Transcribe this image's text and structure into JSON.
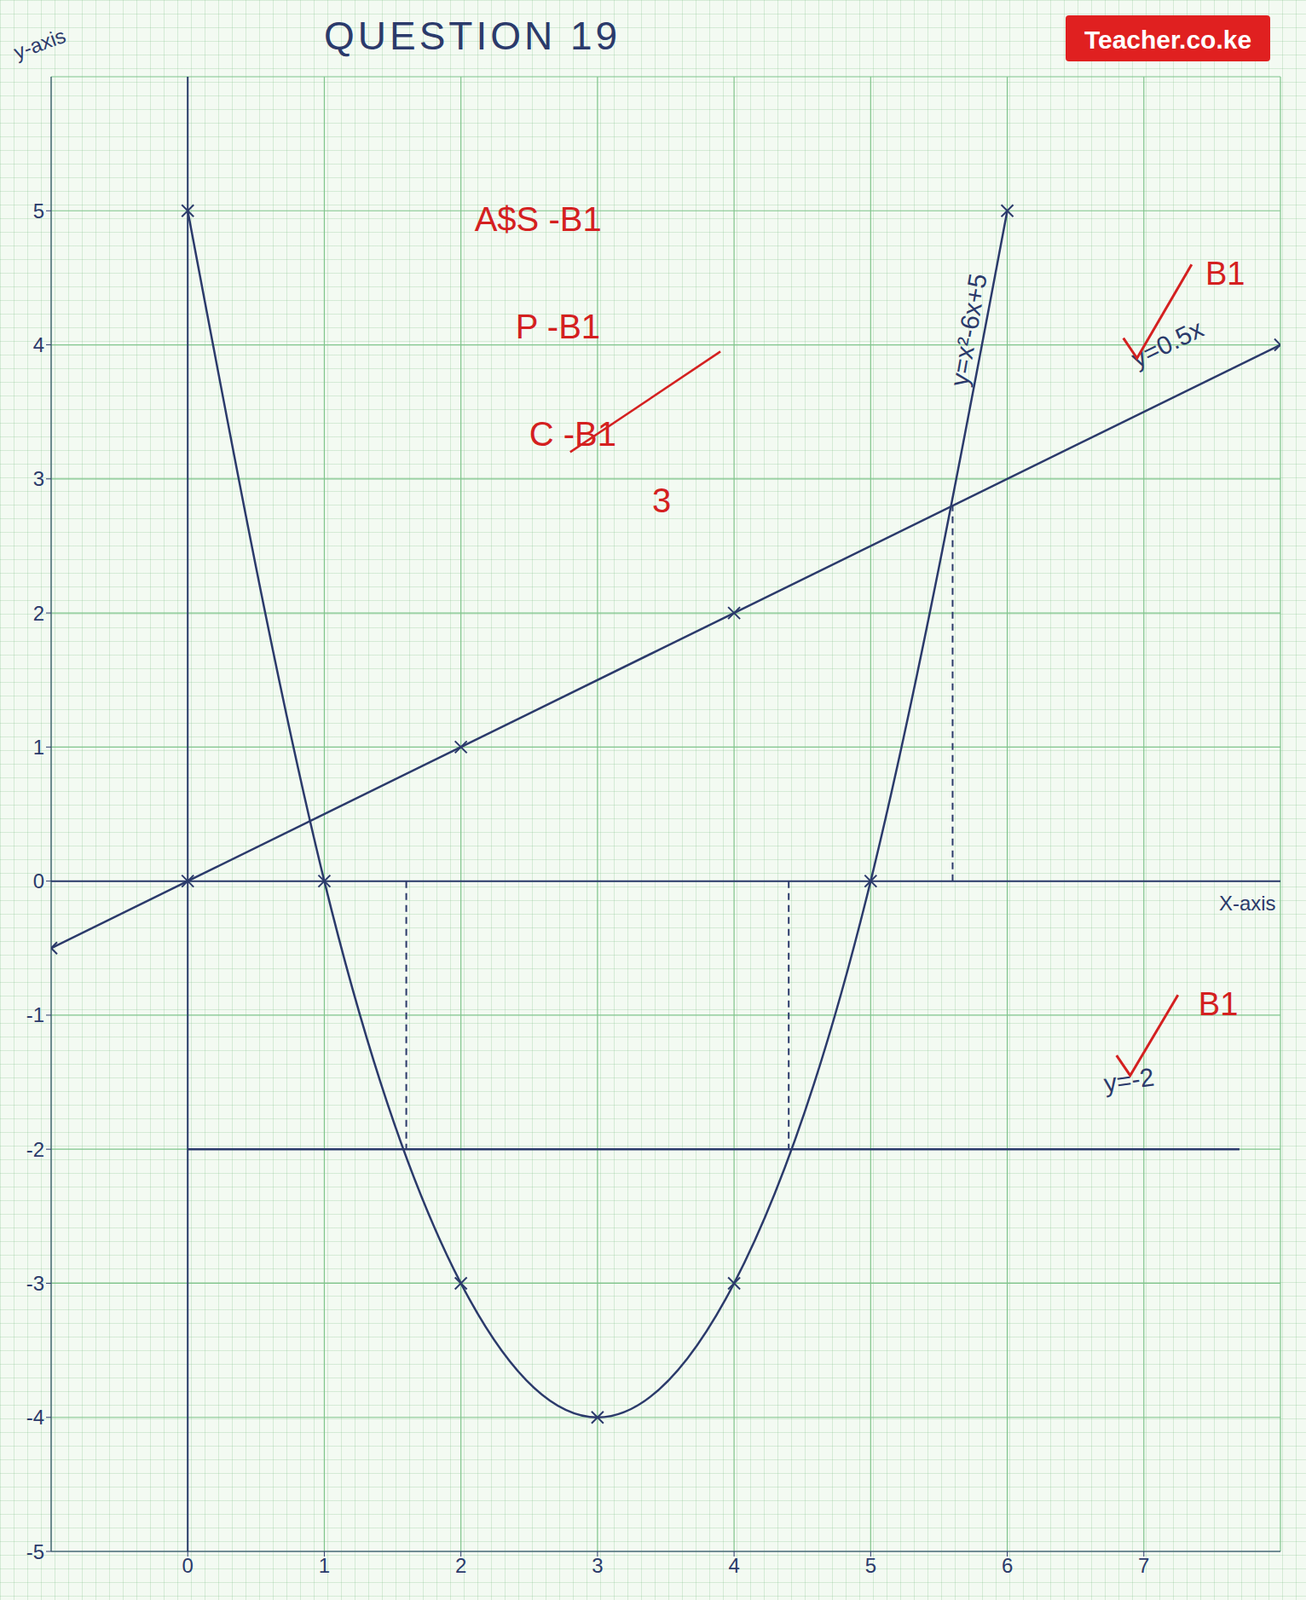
{
  "chart_data": {
    "type": "line",
    "title": "QUESTION 19",
    "x_label": "X-axis",
    "y_label": "y-axis",
    "xlim": [
      -1,
      8
    ],
    "ylim": [
      -5,
      6
    ],
    "xticks": [
      0,
      1,
      2,
      3,
      4,
      5,
      6,
      7
    ],
    "yticks": [
      -5,
      -4,
      -3,
      -2,
      -1,
      0,
      1,
      2,
      3,
      4,
      5
    ],
    "grid": true,
    "series": [
      {
        "name": "y=x²-6x+5",
        "color": "#2b3a6b",
        "marker": "x",
        "line_style": "solid",
        "x": [
          0,
          1,
          2,
          3,
          4,
          5,
          6
        ],
        "values": [
          5,
          0,
          -3,
          -4,
          -3,
          0,
          5
        ]
      },
      {
        "name": "y=0.5x",
        "color": "#2b3a6b",
        "marker": "x",
        "line_style": "solid",
        "x": [
          -1,
          0,
          2,
          4,
          8
        ],
        "values": [
          -0.5,
          0,
          1,
          2,
          4
        ]
      },
      {
        "name": "y=-2",
        "color": "#2b3a6b",
        "marker": "none",
        "line_style": "solid",
        "x": [
          0,
          7.7
        ],
        "values": [
          -2,
          -2
        ]
      }
    ],
    "dashed_lines": [
      {
        "x": 1.6,
        "y": [
          0,
          -2
        ]
      },
      {
        "x": 4.4,
        "y": [
          0,
          -2
        ]
      },
      {
        "x": 5.6,
        "y": [
          0,
          2.8
        ]
      }
    ],
    "annotations": [
      "A$S -B1",
      "P -B1",
      "C -B1",
      "3",
      "B1",
      "B1"
    ],
    "watermark": "Teacher.co.ke"
  }
}
